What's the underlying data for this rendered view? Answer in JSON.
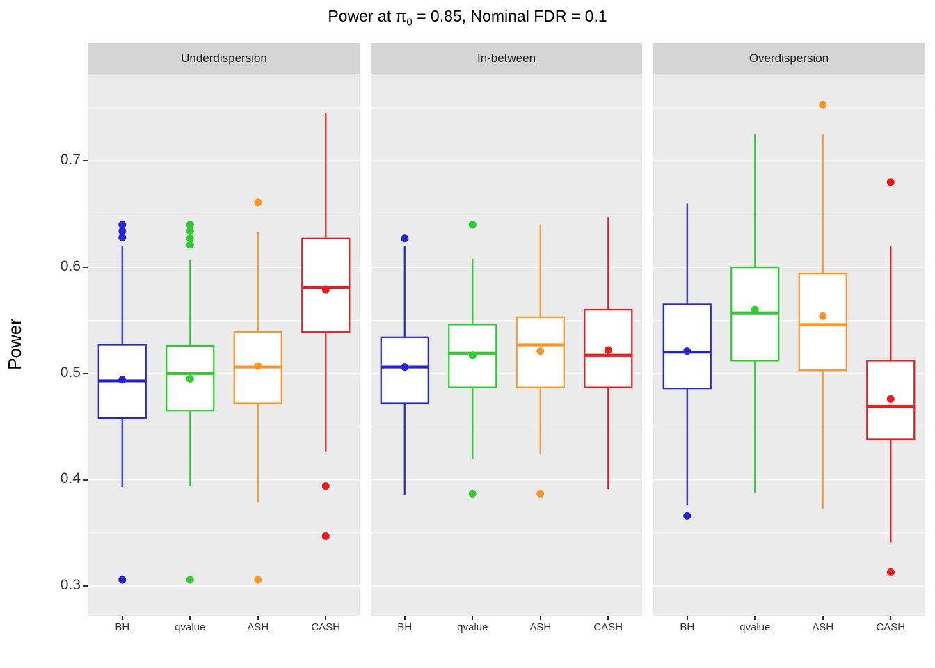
{
  "title": {
    "prefix": "Power at ",
    "pi": "π",
    "sub": "0",
    "suffix": " = 0.85, Nominal FDR = 0.1"
  },
  "ylabel": "Power",
  "chart_data": {
    "type": "boxplot",
    "title": "Power at π0 = 0.85, Nominal FDR = 0.1",
    "ylabel": "Power",
    "xlabel": "",
    "ylim": [
      0.272,
      0.782
    ],
    "yticks": [
      0.3,
      0.4,
      0.5,
      0.6,
      0.7
    ],
    "minor_gridlines": [
      0.35,
      0.45,
      0.55,
      0.65,
      0.75
    ],
    "grid": "on",
    "legend": "none",
    "panel_background": "#ebebeb",
    "gridline_color": "#ffffff",
    "methods": [
      "BH",
      "qvalue",
      "ASH",
      "CASH"
    ],
    "colors": {
      "BH": "#2323db",
      "qvalue": "#2fcc2f",
      "ASH": "#ff9624",
      "CASH": "#f11a1a"
    },
    "facets": [
      {
        "label": "Underdispersion",
        "boxes": [
          {
            "method": "BH",
            "whislo": 0.393,
            "q1": 0.458,
            "med": 0.493,
            "q3": 0.527,
            "whishi": 0.62,
            "mean": 0.494,
            "outliers": [
              0.64,
              0.634,
              0.628,
              0.306
            ]
          },
          {
            "method": "qvalue",
            "whislo": 0.394,
            "q1": 0.465,
            "med": 0.5,
            "q3": 0.526,
            "whishi": 0.607,
            "mean": 0.495,
            "outliers": [
              0.64,
              0.634,
              0.627,
              0.621,
              0.306
            ]
          },
          {
            "method": "ASH",
            "whislo": 0.379,
            "q1": 0.472,
            "med": 0.506,
            "q3": 0.539,
            "whishi": 0.633,
            "mean": 0.507,
            "outliers": [
              0.661,
              0.306
            ]
          },
          {
            "method": "CASH",
            "whislo": 0.426,
            "q1": 0.539,
            "med": 0.581,
            "q3": 0.627,
            "whishi": 0.745,
            "mean": 0.579,
            "outliers": [
              0.394,
              0.347
            ]
          }
        ]
      },
      {
        "label": "In-between",
        "boxes": [
          {
            "method": "BH",
            "whislo": 0.386,
            "q1": 0.472,
            "med": 0.506,
            "q3": 0.534,
            "whishi": 0.62,
            "mean": 0.506,
            "outliers": [
              0.627
            ]
          },
          {
            "method": "qvalue",
            "whislo": 0.42,
            "q1": 0.487,
            "med": 0.519,
            "q3": 0.546,
            "whishi": 0.608,
            "mean": 0.517,
            "outliers": [
              0.64,
              0.387
            ]
          },
          {
            "method": "ASH",
            "whislo": 0.424,
            "q1": 0.487,
            "med": 0.527,
            "q3": 0.553,
            "whishi": 0.64,
            "mean": 0.521,
            "outliers": [
              0.387
            ]
          },
          {
            "method": "CASH",
            "whislo": 0.391,
            "q1": 0.487,
            "med": 0.517,
            "q3": 0.56,
            "whishi": 0.647,
            "mean": 0.522,
            "outliers": []
          }
        ]
      },
      {
        "label": "Overdispersion",
        "boxes": [
          {
            "method": "BH",
            "whislo": 0.376,
            "q1": 0.486,
            "med": 0.52,
            "q3": 0.565,
            "whishi": 0.66,
            "mean": 0.521,
            "outliers": [
              0.366
            ]
          },
          {
            "method": "qvalue",
            "whislo": 0.388,
            "q1": 0.512,
            "med": 0.557,
            "q3": 0.6,
            "whishi": 0.725,
            "mean": 0.56,
            "outliers": []
          },
          {
            "method": "ASH",
            "whislo": 0.373,
            "q1": 0.503,
            "med": 0.546,
            "q3": 0.594,
            "whishi": 0.725,
            "mean": 0.554,
            "outliers": [
              0.753
            ]
          },
          {
            "method": "CASH",
            "whislo": 0.341,
            "q1": 0.438,
            "med": 0.469,
            "q3": 0.512,
            "whishi": 0.62,
            "mean": 0.476,
            "outliers": [
              0.68,
              0.313
            ]
          }
        ]
      }
    ]
  }
}
